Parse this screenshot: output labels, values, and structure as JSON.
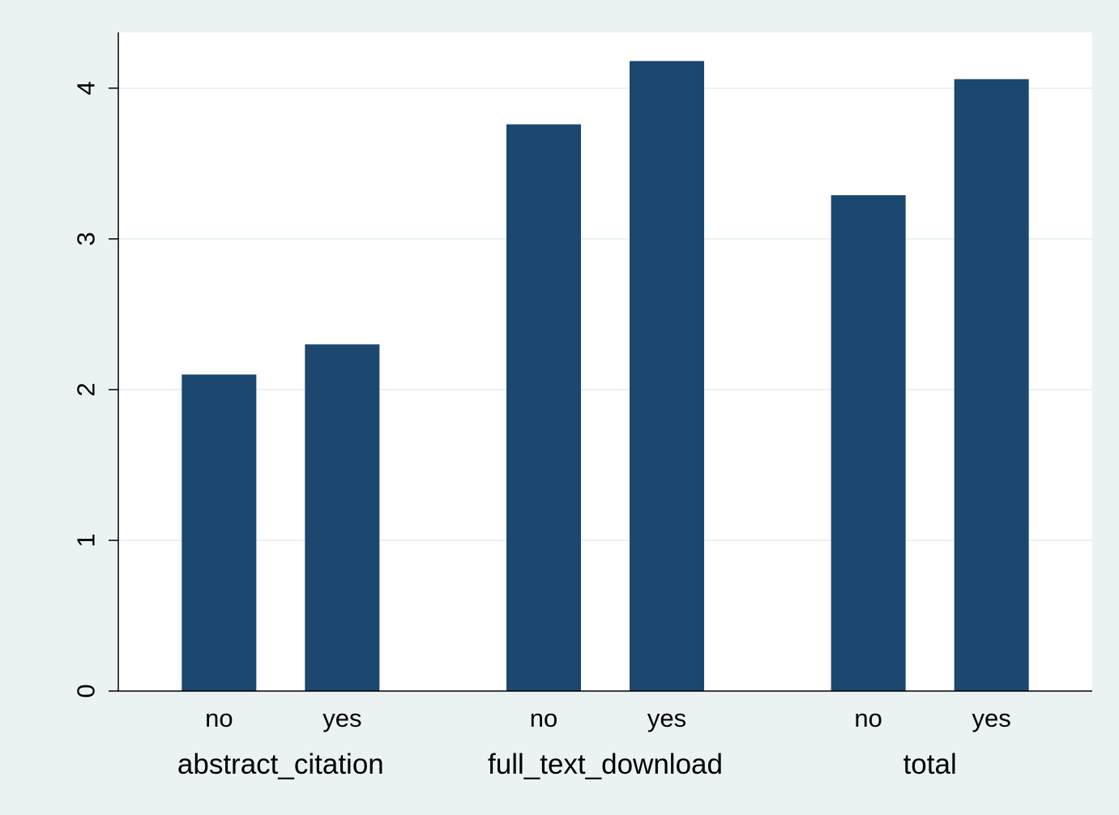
{
  "chart_data": {
    "type": "bar",
    "groups": [
      {
        "label": "abstract_citation",
        "bars": [
          {
            "label": "no",
            "value": 2.1
          },
          {
            "label": "yes",
            "value": 2.3
          }
        ]
      },
      {
        "label": "full_text_download",
        "bars": [
          {
            "label": "no",
            "value": 3.76
          },
          {
            "label": "yes",
            "value": 4.18
          }
        ]
      },
      {
        "label": "total",
        "bars": [
          {
            "label": "no",
            "value": 3.29
          },
          {
            "label": "yes",
            "value": 4.06
          }
        ]
      }
    ],
    "y_ticks": [
      "0",
      "1",
      "2",
      "3",
      "4"
    ],
    "ylim": [
      0,
      4.37
    ],
    "grid": true,
    "colors": {
      "bar": "#1c476f",
      "background": "#eaf2f3",
      "plot_background": "#ffffff",
      "grid": "#eaf2f3"
    }
  }
}
